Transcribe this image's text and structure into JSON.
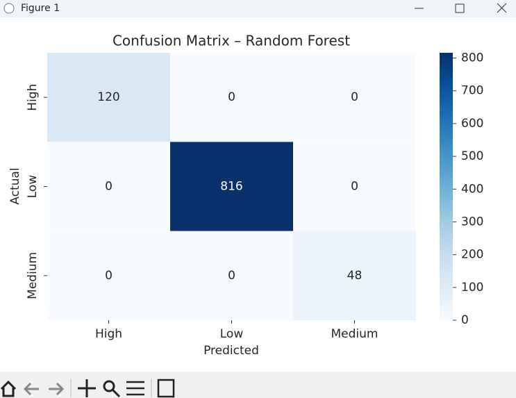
{
  "window_title": "Figure 1",
  "chart_data": {
    "type": "heatmap",
    "title": "Confusion Matrix – Random Forest",
    "x_label": "Predicted",
    "y_label": "Actual",
    "x_categories": [
      "High",
      "Low",
      "Medium"
    ],
    "y_categories": [
      "High",
      "Low",
      "Medium"
    ],
    "values": [
      [
        120,
        0,
        0
      ],
      [
        0,
        816,
        0
      ],
      [
        0,
        0,
        48
      ]
    ],
    "zlim": [
      0,
      816
    ],
    "zticks": [
      0,
      100,
      200,
      300,
      400,
      500,
      600,
      700,
      800
    ],
    "colorscale": [
      "#f7fbff",
      "#deebf7",
      "#c6dbef",
      "#9ecae1",
      "#6baed6",
      "#4292c6",
      "#2171b5",
      "#08519c",
      "#08306b"
    ]
  }
}
